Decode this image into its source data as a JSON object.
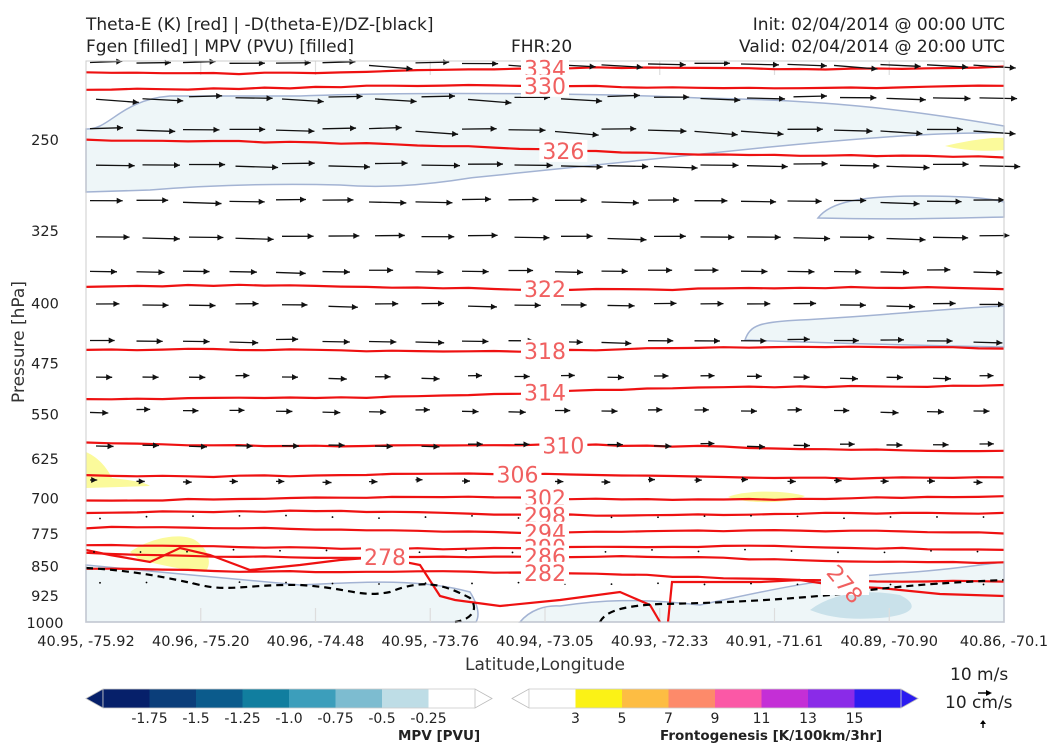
{
  "header": {
    "title_left_1": "Theta-E (K) [red] | -D(theta-E)/DZ-[black]",
    "title_left_2": "Fgen [filled] | MPV (PVU) [filled]",
    "fhr": "FHR:20",
    "init": "Init: 02/04/2014 @ 00:00 UTC",
    "valid": "Valid: 02/04/2014 @ 20:00 UTC"
  },
  "chart_data": {
    "type": "cross-section",
    "xlabel": "Latitude,Longitude",
    "ylabel": "Pressure [hPa]",
    "y_axis": {
      "scale": "log",
      "range": [
        200,
        1000
      ],
      "ticks": [
        250,
        325,
        400,
        475,
        550,
        625,
        700,
        775,
        850,
        925,
        1000
      ]
    },
    "x_ticks": [
      "40.95, -75.92",
      "40.96, -75.20",
      "40.96, -74.48",
      "40.95, -73.76",
      "40.94, -73.05",
      "40.93, -72.33",
      "40.91, -71.61",
      "40.89, -70.90",
      "40.86, -70.1"
    ],
    "theta_e": {
      "color": "#ee1111",
      "contours": [
        {
          "label": "334",
          "left": 207,
          "right": 203,
          "label_at": 0.5
        },
        {
          "label": "330",
          "left": 216,
          "right": 215,
          "label_at": 0.5
        },
        {
          "label": "326",
          "left": 250,
          "right": 265,
          "label_at": 0.52
        },
        {
          "label": "322",
          "left": 382,
          "right": 385,
          "label_at": 0.5
        },
        {
          "label": "318",
          "left": 460,
          "right": 455,
          "label_at": 0.5
        },
        {
          "label": "314",
          "left": 530,
          "right": 505,
          "label_at": 0.5
        },
        {
          "label": "310",
          "left": 598,
          "right": 610,
          "label_at": 0.52
        },
        {
          "label": "306",
          "left": 655,
          "right": 660,
          "label_at": 0.47
        },
        {
          "label": "302",
          "left": 703,
          "right": 700,
          "label_at": 0.5
        },
        {
          "label": "298",
          "left": 730,
          "right": 735,
          "label_at": 0.5
        },
        {
          "label": "294",
          "left": 765,
          "right": 775,
          "label_at": 0.5
        },
        {
          "label": "290",
          "left": 805,
          "right": 810,
          "label_at": 0.5
        },
        {
          "label": "286",
          "left": 823,
          "right": 840,
          "label_at": 0.5
        },
        {
          "label": "282",
          "left": 855,
          "right": 890,
          "label_at": 0.5
        },
        {
          "label": "278",
          "left": 905,
          "right": 940,
          "label_at": 0.33
        },
        {
          "label": "278",
          "left": 975,
          "right": 975,
          "label_at": 0.85
        }
      ]
    },
    "wind_barbs": "black arrows, mostly westerly, strongest aloft",
    "ref_vectors": [
      "10 m/s",
      "10 cm/s"
    ],
    "colorbars": [
      {
        "name": "MPV [PVU]",
        "ticks": [
          "-1.75",
          "-1.5",
          "-1.25",
          "-1.0",
          "-0.75",
          "-0.5",
          "-0.25"
        ],
        "colors": [
          "#06206a",
          "#0b3e7a",
          "#0b5b8c",
          "#117e9f",
          "#3c9ebb",
          "#7dbcd0",
          "#bedde6",
          "#ffffff"
        ]
      },
      {
        "name": "Frontogenesis [K/100km/3hr]",
        "ticks": [
          "3",
          "5",
          "7",
          "9",
          "11",
          "13",
          "15"
        ],
        "colors": [
          "#ffffff",
          "#fbf216",
          "#fdbd43",
          "#fd8a6a",
          "#fb58a6",
          "#c42fd6",
          "#8a2be8",
          "#2b1cf0"
        ]
      }
    ]
  }
}
